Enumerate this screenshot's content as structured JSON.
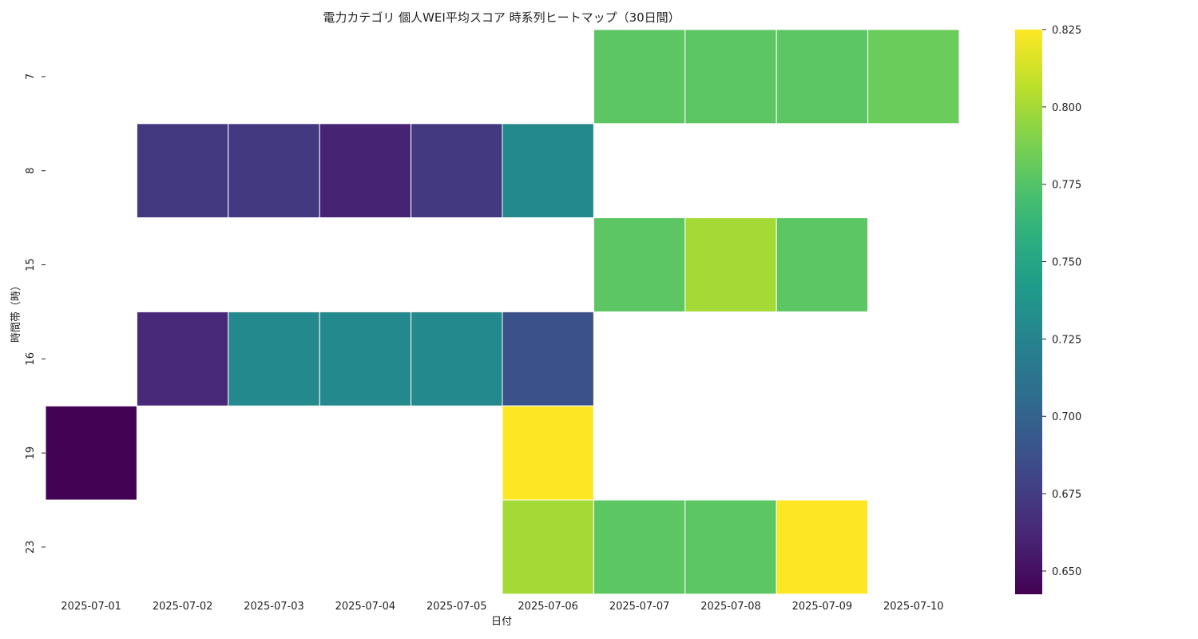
{
  "chart_data": {
    "type": "heatmap",
    "title": "電力カテゴリ 個人WEI平均スコア 時系列ヒートマップ（30日間）",
    "xlabel": "日付",
    "ylabel": "時間帯（時）",
    "x_categories": [
      "2025-07-01",
      "2025-07-02",
      "2025-07-03",
      "2025-07-04",
      "2025-07-05",
      "2025-07-06",
      "2025-07-07",
      "2025-07-08",
      "2025-07-09",
      "2025-07-10"
    ],
    "y_categories": [
      "7",
      "8",
      "15",
      "16",
      "19",
      "23"
    ],
    "values": [
      [
        null,
        null,
        null,
        null,
        null,
        null,
        0.778,
        0.778,
        0.778,
        0.783
      ],
      [
        null,
        0.673,
        0.673,
        0.66,
        0.673,
        0.729,
        null,
        null,
        null,
        null
      ],
      [
        null,
        null,
        null,
        null,
        null,
        null,
        0.778,
        0.8,
        0.778,
        null
      ],
      [
        null,
        0.663,
        0.729,
        0.729,
        0.729,
        0.688,
        null,
        null,
        null,
        null
      ],
      [
        0.643,
        null,
        null,
        null,
        null,
        0.825,
        null,
        null,
        null,
        null
      ],
      [
        null,
        null,
        null,
        null,
        null,
        0.8,
        0.778,
        0.778,
        0.825,
        null
      ]
    ],
    "colorbar": {
      "colormap": "viridis",
      "range": [
        0.6425,
        0.825
      ],
      "ticks": [
        "0.650",
        "0.675",
        "0.700",
        "0.725",
        "0.750",
        "0.775",
        "0.800",
        "0.825"
      ]
    },
    "grid": false,
    "legend": "colorbar-right"
  }
}
